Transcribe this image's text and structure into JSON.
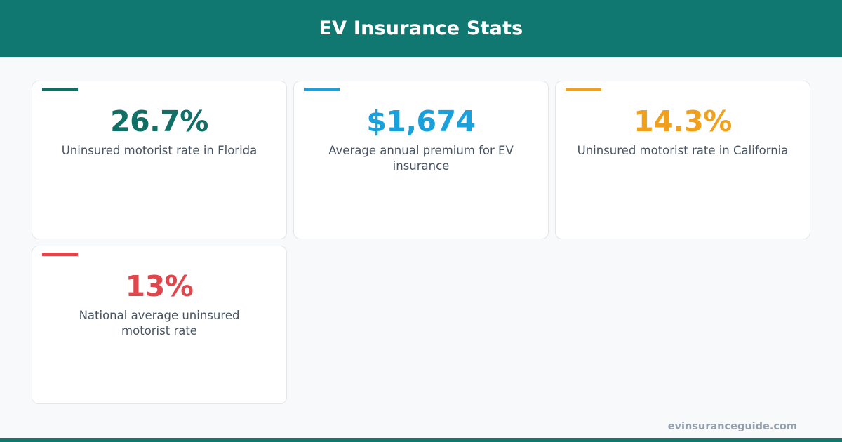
{
  "header": {
    "title": "EV Insurance Stats"
  },
  "colors": {
    "brand": "#107870",
    "teal": "#126f66",
    "blue": "#1aa1dc",
    "amber": "#f0a01c",
    "red": "#e0474c"
  },
  "cards": [
    {
      "value": "26.7%",
      "label": "Uninsured motorist rate in Florida",
      "color": "#126f66"
    },
    {
      "value": "$1,674",
      "label": "Average annual premium for EV insurance",
      "color": "#1aa1dc"
    },
    {
      "value": "14.3%",
      "label": "Uninsured motorist rate in California",
      "color": "#f0a01c"
    },
    {
      "value": "13%",
      "label": "National average uninsured motorist rate",
      "color": "#e0474c"
    }
  ],
  "footer": {
    "site": "evinsuranceguide.com"
  }
}
